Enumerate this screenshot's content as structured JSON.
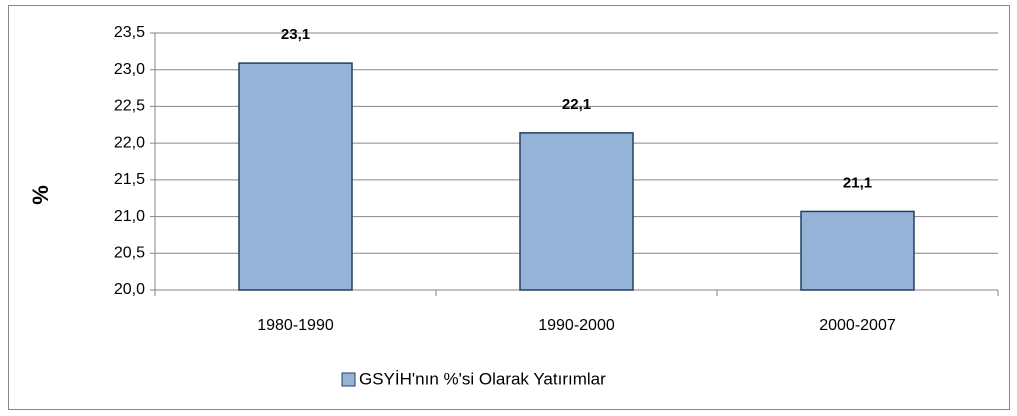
{
  "chart_data": {
    "type": "bar",
    "y_label": "%",
    "categories": [
      "1980-1990",
      "1990-2000",
      "2000-2007"
    ],
    "series": [
      {
        "name": "GSYİH'nın %'si Olarak Yatırımlar",
        "color": "#95b3d7",
        "edge": "#243f60",
        "values": [
          23.09,
          22.14,
          21.07
        ],
        "value_labels": [
          "23,1",
          "22,1",
          "21,1"
        ]
      }
    ],
    "ylim": [
      20,
      23.5
    ],
    "yticks": [
      {
        "value": 20,
        "label": "20,0"
      },
      {
        "value": 20.5,
        "label": "20,5"
      },
      {
        "value": 21,
        "label": "21,0"
      },
      {
        "value": 21.5,
        "label": "21,5"
      },
      {
        "value": 22,
        "label": "22,0"
      },
      {
        "value": 22.5,
        "label": "22,5"
      },
      {
        "value": 23,
        "label": "23,0"
      },
      {
        "value": 23.5,
        "label": "23,5"
      }
    ],
    "grid": true,
    "legend": "bottom"
  }
}
